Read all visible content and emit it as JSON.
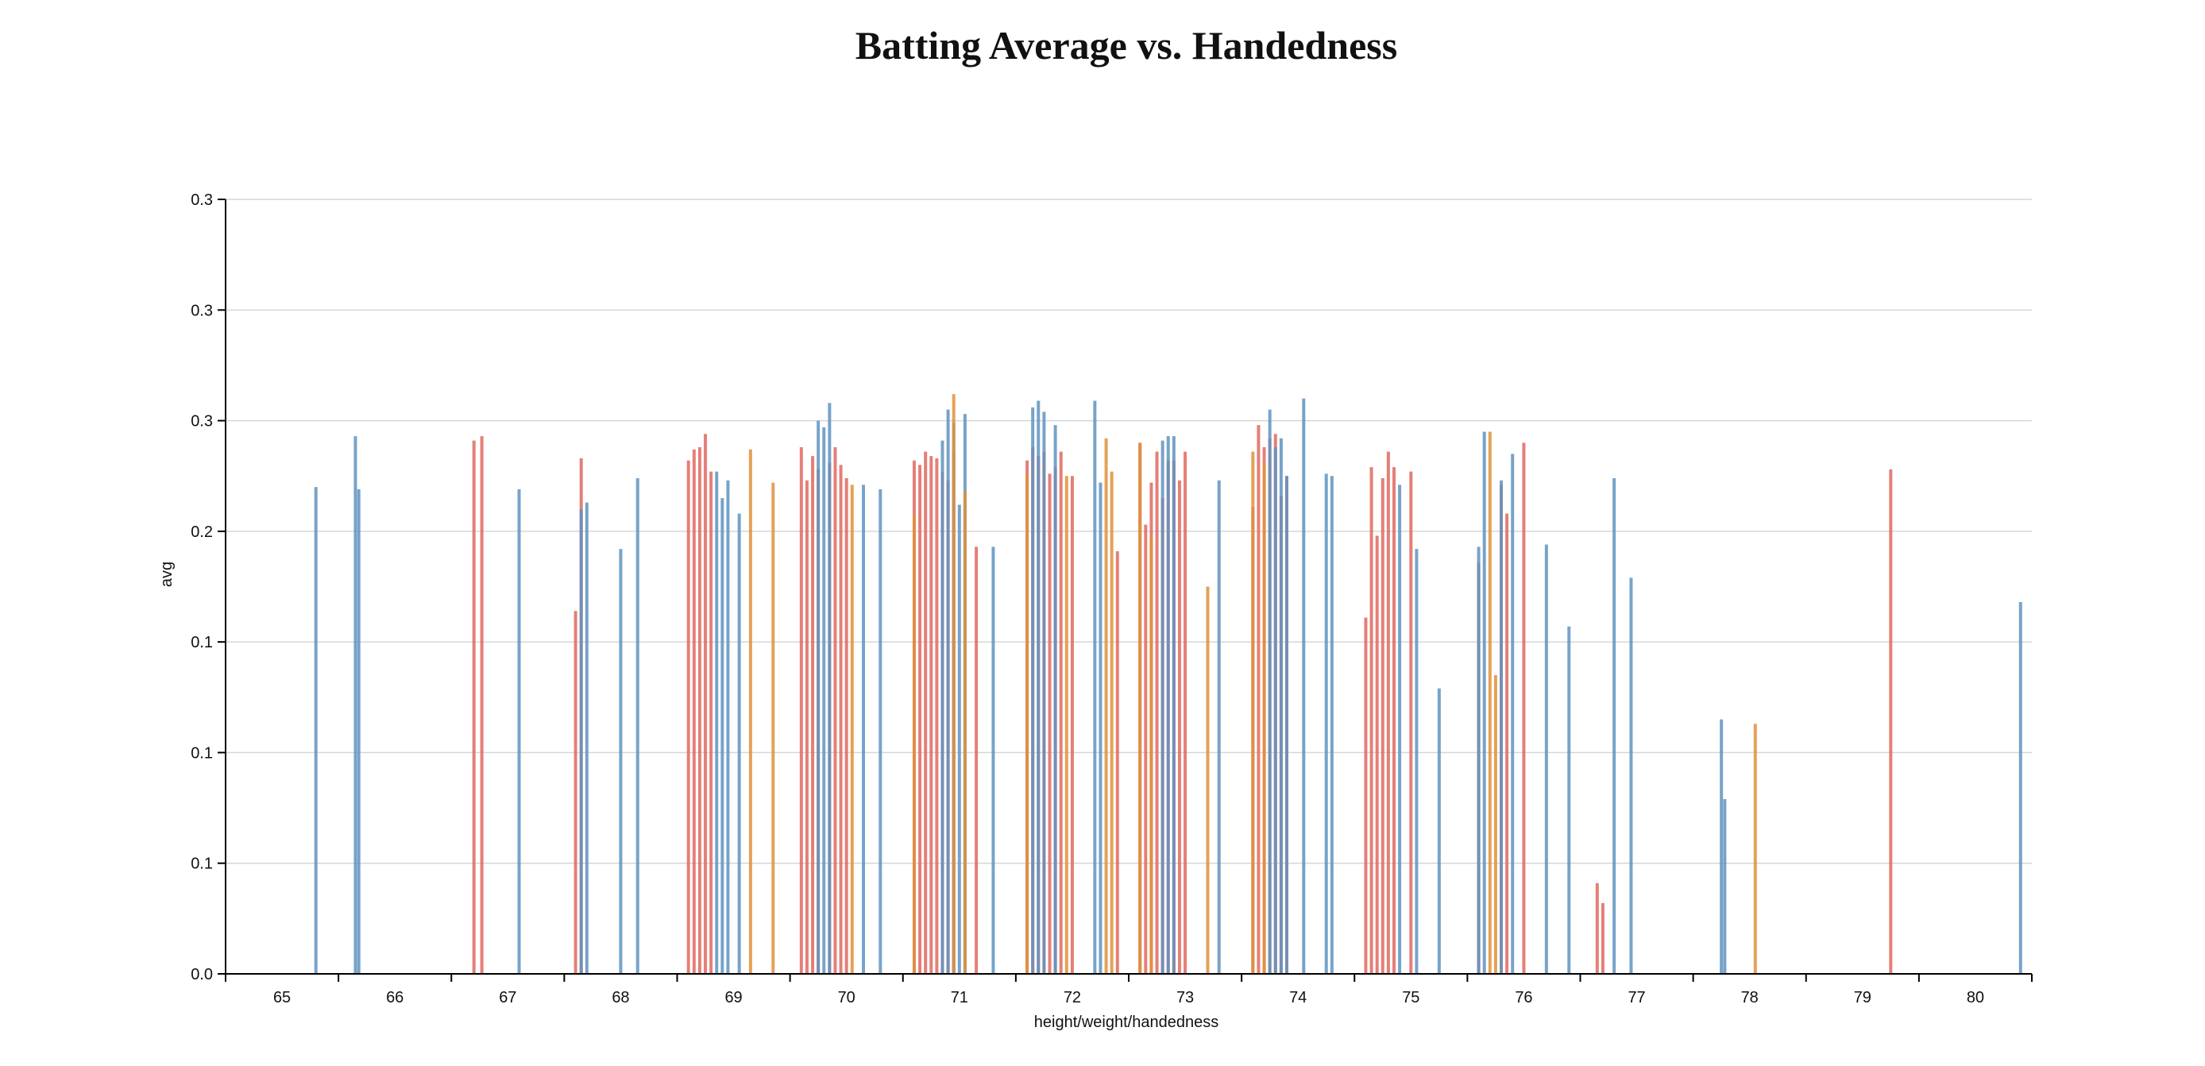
{
  "chart_data": {
    "type": "bar",
    "title": "Batting Average vs. Handedness",
    "xlabel": "height/weight/handedness",
    "ylabel": "avg",
    "x_tick_labels": [
      "65",
      "66",
      "67",
      "68",
      "69",
      "70",
      "71",
      "72",
      "73",
      "74",
      "75",
      "76",
      "77",
      "78",
      "79",
      "80"
    ],
    "y_tick_labels": [
      "0.0",
      "0.1",
      "0.1",
      "0.1",
      "0.2",
      "0.3",
      "0.3",
      "0.3"
    ],
    "ylim": [
      0,
      0.35
    ],
    "xlim": [
      64.5,
      80.5
    ],
    "grid": true,
    "legend": "none",
    "colors": {
      "R": "#e0685f",
      "L": "#5f93c0",
      "B": "#e0913a"
    },
    "series": [
      {
        "key": "R",
        "points": [
          [
            66.7,
            0.241
          ],
          [
            66.77,
            0.243
          ],
          [
            67.6,
            0.164
          ],
          [
            67.65,
            0.233
          ],
          [
            68.6,
            0.232
          ],
          [
            68.65,
            0.237
          ],
          [
            68.7,
            0.238
          ],
          [
            68.75,
            0.244
          ],
          [
            68.8,
            0.227
          ],
          [
            69.6,
            0.238
          ],
          [
            69.65,
            0.223
          ],
          [
            69.7,
            0.234
          ],
          [
            69.75,
            0.228
          ],
          [
            69.85,
            0.231
          ],
          [
            69.9,
            0.238
          ],
          [
            69.95,
            0.23
          ],
          [
            70.0,
            0.224
          ],
          [
            70.6,
            0.232
          ],
          [
            70.65,
            0.23
          ],
          [
            70.7,
            0.236
          ],
          [
            70.75,
            0.234
          ],
          [
            70.8,
            0.233
          ],
          [
            70.85,
            0.227
          ],
          [
            70.9,
            0.223
          ],
          [
            70.95,
            0.235
          ],
          [
            71.15,
            0.193
          ],
          [
            71.6,
            0.232
          ],
          [
            71.65,
            0.238
          ],
          [
            71.7,
            0.234
          ],
          [
            71.75,
            0.236
          ],
          [
            71.8,
            0.226
          ],
          [
            71.85,
            0.229
          ],
          [
            71.9,
            0.236
          ],
          [
            72.0,
            0.225
          ],
          [
            72.4,
            0.191
          ],
          [
            72.6,
            0.24
          ],
          [
            72.65,
            0.203
          ],
          [
            72.7,
            0.222
          ],
          [
            72.75,
            0.236
          ],
          [
            72.8,
            0.215
          ],
          [
            72.85,
            0.232
          ],
          [
            72.9,
            0.232
          ],
          [
            72.95,
            0.223
          ],
          [
            73.0,
            0.236
          ],
          [
            73.6,
            0.211
          ],
          [
            73.65,
            0.248
          ],
          [
            73.7,
            0.238
          ],
          [
            73.75,
            0.242
          ],
          [
            73.8,
            0.244
          ],
          [
            73.85,
            0.216
          ],
          [
            73.9,
            0.225
          ],
          [
            74.6,
            0.161
          ],
          [
            74.65,
            0.229
          ],
          [
            74.7,
            0.198
          ],
          [
            74.75,
            0.224
          ],
          [
            74.8,
            0.236
          ],
          [
            74.85,
            0.229
          ],
          [
            75.0,
            0.227
          ],
          [
            75.6,
            0.186
          ],
          [
            75.8,
            0.221
          ],
          [
            75.85,
            0.208
          ],
          [
            76.0,
            0.24
          ],
          [
            76.65,
            0.041
          ],
          [
            76.7,
            0.032
          ],
          [
            79.25,
            0.228
          ]
        ]
      },
      {
        "key": "L",
        "points": [
          [
            65.3,
            0.22
          ],
          [
            65.65,
            0.243
          ],
          [
            65.68,
            0.219
          ],
          [
            67.1,
            0.219
          ],
          [
            67.65,
            0.21
          ],
          [
            67.7,
            0.213
          ],
          [
            68.0,
            0.192
          ],
          [
            68.15,
            0.224
          ],
          [
            68.85,
            0.227
          ],
          [
            68.9,
            0.215
          ],
          [
            68.95,
            0.223
          ],
          [
            69.05,
            0.208
          ],
          [
            69.75,
            0.25
          ],
          [
            69.8,
            0.247
          ],
          [
            69.85,
            0.258
          ],
          [
            70.15,
            0.221
          ],
          [
            70.3,
            0.219
          ],
          [
            70.85,
            0.241
          ],
          [
            70.9,
            0.255
          ],
          [
            70.95,
            0.249
          ],
          [
            71.0,
            0.212
          ],
          [
            71.05,
            0.253
          ],
          [
            71.3,
            0.193
          ],
          [
            71.65,
            0.256
          ],
          [
            71.7,
            0.259
          ],
          [
            71.75,
            0.254
          ],
          [
            71.85,
            0.248
          ],
          [
            72.2,
            0.259
          ],
          [
            72.25,
            0.222
          ],
          [
            72.8,
            0.241
          ],
          [
            72.85,
            0.243
          ],
          [
            72.9,
            0.243
          ],
          [
            73.3,
            0.223
          ],
          [
            73.75,
            0.255
          ],
          [
            73.8,
            0.238
          ],
          [
            73.85,
            0.242
          ],
          [
            73.9,
            0.225
          ],
          [
            74.05,
            0.26
          ],
          [
            74.25,
            0.226
          ],
          [
            74.3,
            0.225
          ],
          [
            74.9,
            0.221
          ],
          [
            75.05,
            0.192
          ],
          [
            75.25,
            0.129
          ],
          [
            75.6,
            0.193
          ],
          [
            75.65,
            0.245
          ],
          [
            75.8,
            0.223
          ],
          [
            75.9,
            0.235
          ],
          [
            76.2,
            0.194
          ],
          [
            76.4,
            0.157
          ],
          [
            76.8,
            0.224
          ],
          [
            76.95,
            0.179
          ],
          [
            77.75,
            0.115
          ],
          [
            77.78,
            0.079
          ],
          [
            80.4,
            0.168
          ]
        ]
      },
      {
        "key": "B",
        "points": [
          [
            69.15,
            0.237
          ],
          [
            69.35,
            0.222
          ],
          [
            70.05,
            0.221
          ],
          [
            70.6,
            0.207
          ],
          [
            70.95,
            0.262
          ],
          [
            71.05,
            0.218
          ],
          [
            71.6,
            0.226
          ],
          [
            71.95,
            0.225
          ],
          [
            72.3,
            0.242
          ],
          [
            72.35,
            0.227
          ],
          [
            72.6,
            0.24
          ],
          [
            72.7,
            0.197
          ],
          [
            73.2,
            0.175
          ],
          [
            73.6,
            0.236
          ],
          [
            73.7,
            0.231
          ],
          [
            75.7,
            0.245
          ],
          [
            75.75,
            0.135
          ],
          [
            78.05,
            0.113
          ]
        ]
      }
    ]
  }
}
